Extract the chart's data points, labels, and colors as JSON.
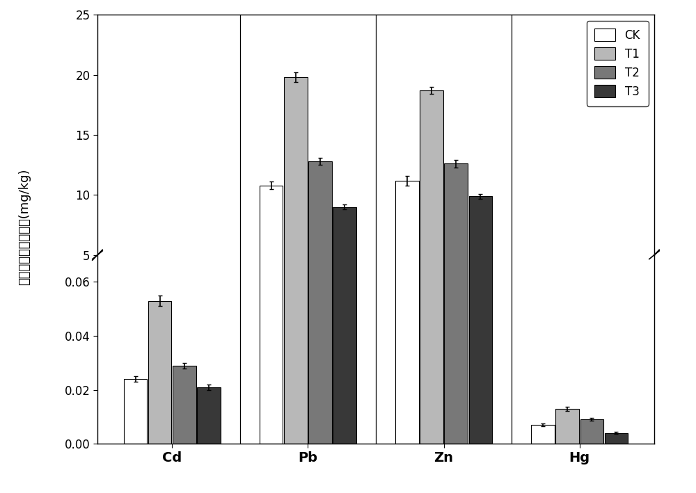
{
  "categories": [
    "Cd",
    "Pb",
    "Zn",
    "Hg"
  ],
  "treatments": [
    "CK",
    "T1",
    "T2",
    "T3"
  ],
  "colors": [
    "#ffffff",
    "#b8b8b8",
    "#787878",
    "#383838"
  ],
  "edge_colors": [
    "#000000",
    "#000000",
    "#000000",
    "#000000"
  ],
  "values": {
    "Cd": [
      0.024,
      0.053,
      0.029,
      0.021
    ],
    "Pb": [
      10.8,
      19.8,
      12.8,
      9.0
    ],
    "Zn": [
      11.2,
      18.7,
      12.6,
      9.9
    ],
    "Hg": [
      0.007,
      0.013,
      0.009,
      0.004
    ]
  },
  "errors": {
    "Cd": [
      0.001,
      0.002,
      0.001,
      0.001
    ],
    "Pb": [
      0.3,
      0.4,
      0.3,
      0.2
    ],
    "Zn": [
      0.4,
      0.3,
      0.3,
      0.2
    ],
    "Hg": [
      0.0005,
      0.0008,
      0.0005,
      0.0003
    ]
  },
  "ylabel": "地上部分重金属含量(mg/kg)",
  "upper_ylim": [
    5,
    25
  ],
  "upper_yticks": [
    5,
    10,
    15,
    20,
    25
  ],
  "lower_ylim": [
    0.0,
    0.07
  ],
  "lower_yticks": [
    0.0,
    0.02,
    0.04,
    0.06
  ],
  "bar_width": 0.18,
  "x_positions": [
    0,
    1,
    2,
    3
  ]
}
